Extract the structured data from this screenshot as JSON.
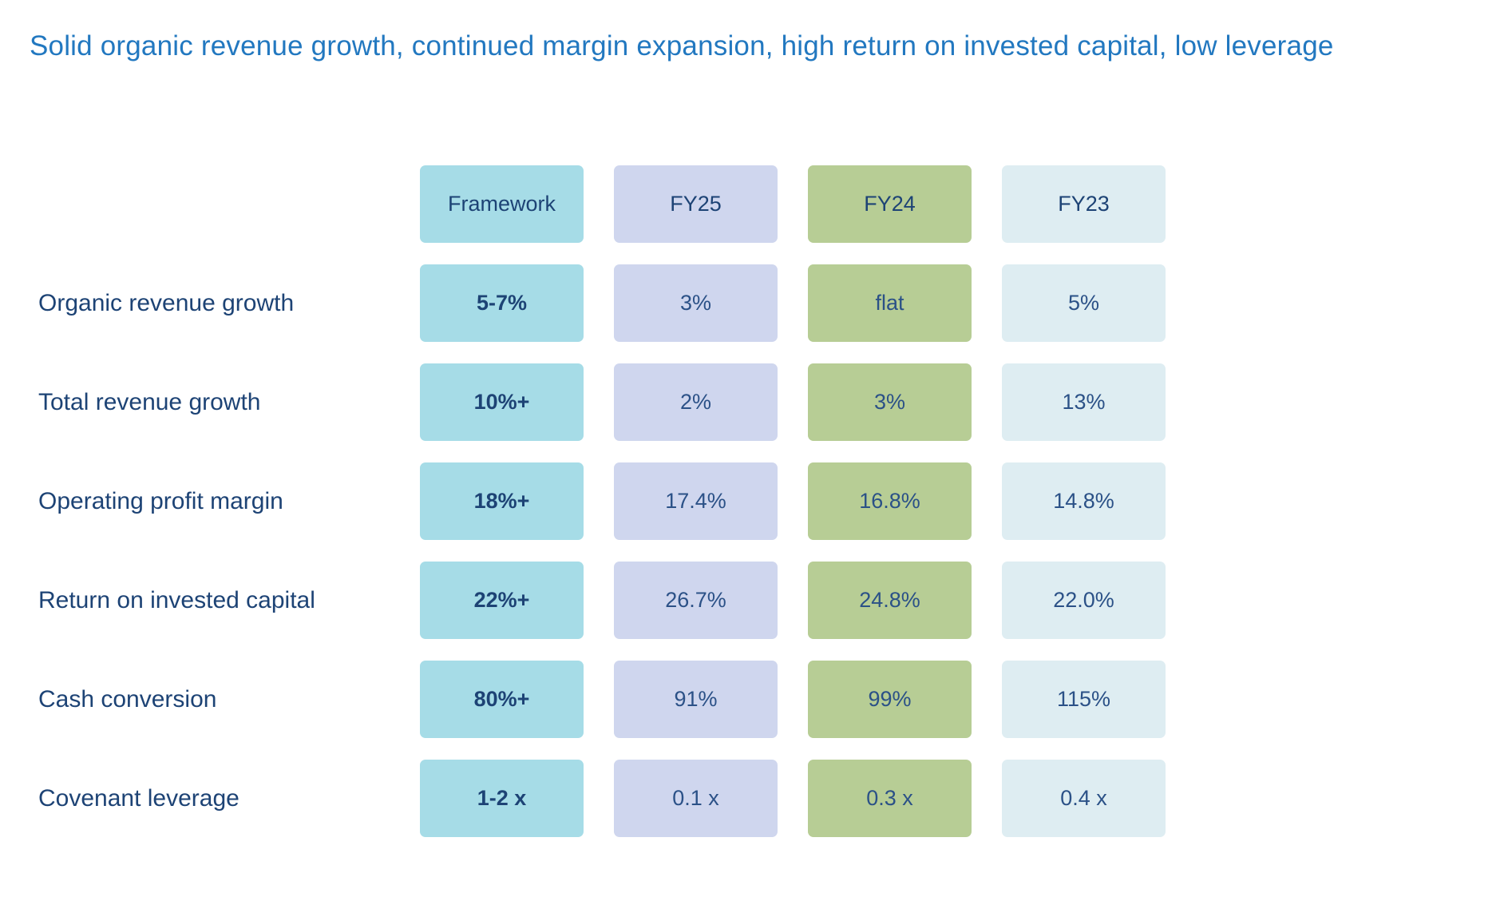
{
  "header": {
    "title": "Solid organic revenue growth, continued margin expansion, high return on invested capital, low leverage"
  },
  "colors": {
    "title_blue": "#2278C0",
    "text_navy": "#1D4375",
    "value_navy": "#2B5187",
    "framework_bg": "#A6DCE7",
    "fy25_bg": "#CFD6EE",
    "fy24_bg": "#B7CD95",
    "fy23_bg": "#DEEDF2"
  },
  "chart_data": {
    "type": "table",
    "title": "Solid organic revenue growth, continued margin expansion, high return on invested capital, low leverage",
    "column_headers": [
      "Framework",
      "FY25",
      "FY24",
      "FY23"
    ],
    "rows": [
      {
        "label": "Organic revenue growth",
        "values": [
          "5-7%",
          "3%",
          "flat",
          "5%"
        ]
      },
      {
        "label": "Total revenue growth",
        "values": [
          "10%+",
          "2%",
          "3%",
          "13%"
        ]
      },
      {
        "label": "Operating profit margin",
        "values": [
          "18%+",
          "17.4%",
          "16.8%",
          "14.8%"
        ]
      },
      {
        "label": "Return on invested capital",
        "values": [
          "22%+",
          "26.7%",
          "24.8%",
          "22.0%"
        ]
      },
      {
        "label": "Cash conversion",
        "values": [
          "80%+",
          "91%",
          "99%",
          "115%"
        ]
      },
      {
        "label": "Covenant leverage",
        "values": [
          "1-2 x",
          "0.1 x",
          "0.3 x",
          "0.4 x"
        ]
      }
    ],
    "layout": {
      "legend": "none",
      "grid": "off",
      "column_bg_colors": [
        "#A6DCE7",
        "#CFD6EE",
        "#B7CD95",
        "#DEEDF2"
      ],
      "framework_column_bold": true
    }
  }
}
